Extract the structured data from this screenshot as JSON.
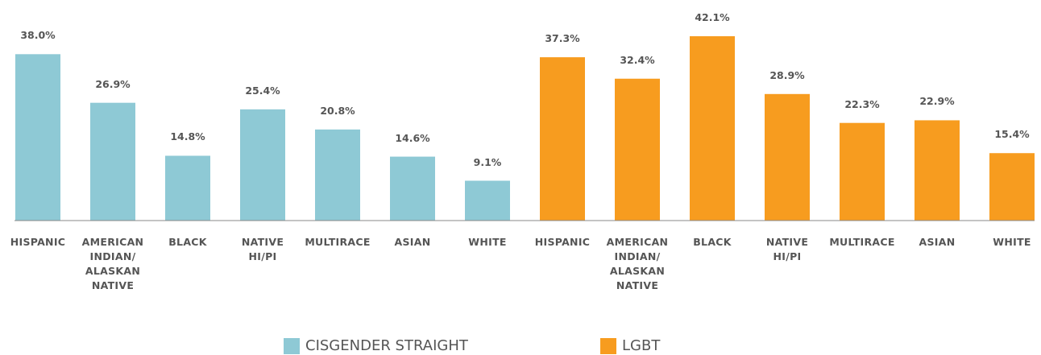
{
  "chart_data": {
    "type": "bar",
    "categories": [
      "HISPANIC",
      "AMERICAN INDIAN/ ALASKAN NATIVE",
      "BLACK",
      "NATIVE HI/PI",
      "MULTIRACE",
      "ASIAN",
      "WHITE"
    ],
    "series": [
      {
        "name": "CISGENDER STRAIGHT",
        "color": "#8ec9d5",
        "values": [
          38.0,
          26.9,
          14.8,
          25.4,
          20.8,
          14.6,
          9.1
        ],
        "value_labels": [
          "38.0%",
          "26.9%",
          "14.8%",
          "25.4%",
          "20.8%",
          "14.6%",
          "9.1%"
        ]
      },
      {
        "name": "LGBT",
        "color": "#f79c1f",
        "values": [
          37.3,
          32.4,
          42.1,
          28.9,
          22.3,
          22.9,
          15.4
        ],
        "value_labels": [
          "37.3%",
          "32.4%",
          "42.1%",
          "28.9%",
          "22.3%",
          "22.9%",
          "15.4%"
        ]
      }
    ]
  }
}
